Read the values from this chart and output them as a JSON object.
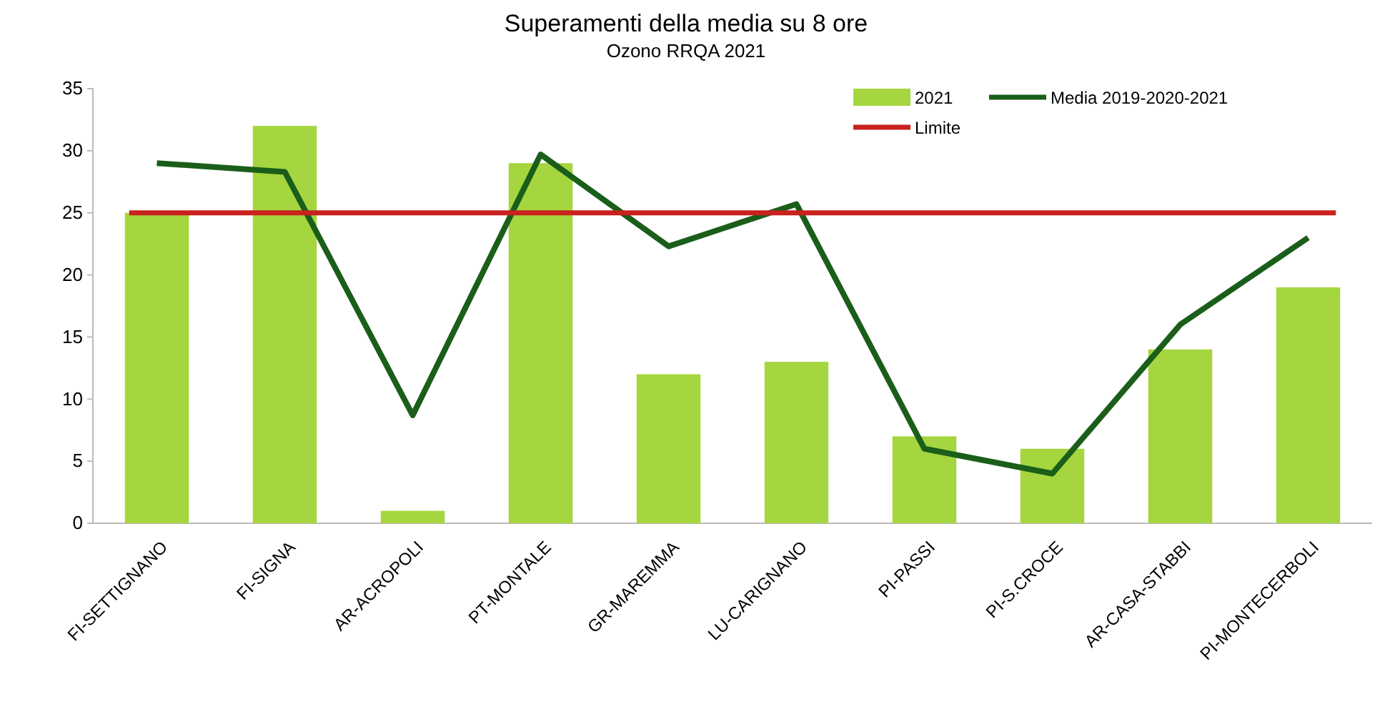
{
  "chart_data": {
    "type": "bar",
    "title": "Superamenti della media su 8 ore",
    "subtitle": "Ozono  RRQA 2021",
    "categories": [
      "FI-SETTIGNANO",
      "FI-SIGNA",
      "AR-ACROPOLI",
      "PT-MONTALE",
      "GR-MAREMMA",
      "LU-CARIGNANO",
      "PI-PASSI",
      "PI-S.CROCE",
      "AR-CASA-STABBI",
      "PI-MONTECERBOLI"
    ],
    "series": [
      {
        "name": "2021",
        "color": "#a5d63f",
        "values": [
          25,
          32,
          1,
          29,
          12,
          13,
          7,
          6,
          14,
          19
        ]
      },
      {
        "name": "Media 2019-2020-2021",
        "type": "line",
        "color": "#1a5e1a",
        "values": [
          29,
          28.3,
          8.7,
          29.7,
          22.3,
          25.7,
          6,
          4,
          16,
          23
        ]
      }
    ],
    "ref_lines": [
      {
        "axis": "y",
        "value": 25,
        "label": "Limite",
        "color": "#c9211e"
      }
    ],
    "ylim": [
      0,
      35
    ],
    "yticks": [
      0,
      5,
      10,
      15,
      20,
      25,
      30,
      35
    ],
    "grid": false,
    "legend": "top right",
    "marker": "none",
    "line_style": "solid"
  }
}
